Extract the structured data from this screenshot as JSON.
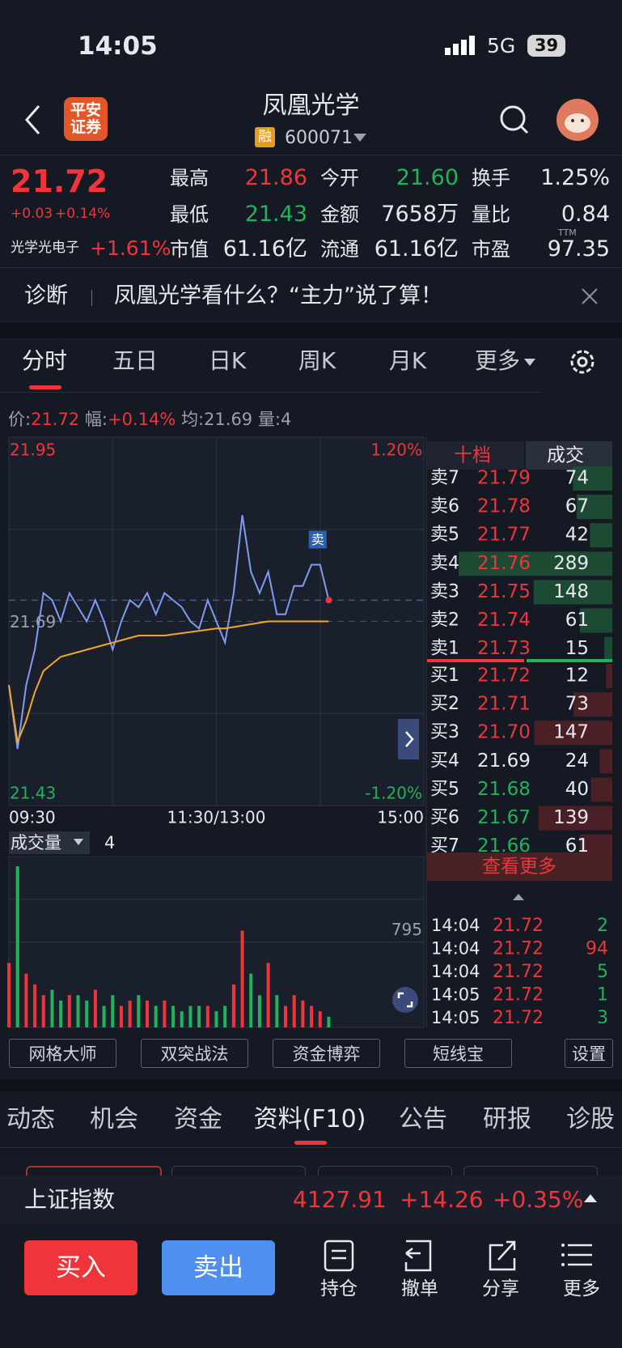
{
  "status_bar": {
    "time": "14:05",
    "network": "5G",
    "battery": "39"
  },
  "header": {
    "logo": [
      "平安",
      "证券"
    ],
    "title": "凤凰光学",
    "tag": "融",
    "code": "600071"
  },
  "quote": {
    "price": "21.72",
    "change": "+0.03",
    "change_pct": "+0.14%",
    "sector": "光学光电子",
    "sector_pct": "+1.61%",
    "ttm": "TTM",
    "stats": [
      {
        "label": "最高",
        "value": "21.86"
      },
      {
        "label": "今开",
        "value": "21.60"
      },
      {
        "label": "换手",
        "value": "1.25%"
      },
      {
        "label": "最低",
        "value": "21.43"
      },
      {
        "label": "金额",
        "value": "7658万"
      },
      {
        "label": "量比",
        "value": "0.84"
      },
      {
        "label": "市值",
        "value": "61.16亿"
      },
      {
        "label": "流通",
        "value": "61.16亿"
      },
      {
        "label": "市盈",
        "value": "97.35"
      }
    ]
  },
  "banner": {
    "label": "诊断",
    "text": "凤凰光学看什么？“主力”说了算！"
  },
  "tabs": [
    "分时",
    "五日",
    "日K",
    "周K",
    "月K",
    "更多"
  ],
  "info_line": {
    "price_label": "价:",
    "price": "21.72",
    "amp_label": "幅:",
    "amp": "+0.14%",
    "avg_label": "均:",
    "avg": "21.69",
    "vol_label": "量:",
    "vol": "4"
  },
  "chart_data": [
    {
      "type": "line",
      "annotation": "卖",
      "xticks": [
        "09:30",
        "11:30/13:00",
        "15:00"
      ],
      "ylim": [
        21.43,
        21.95
      ],
      "yticks": [
        21.95,
        21.69,
        21.43
      ],
      "y2lim": [
        -1.2,
        1.2
      ],
      "y2ticks": [
        {
          "value": 1.2,
          "label": "1.20%"
        },
        {
          "value": -1.2,
          "label": "-1.20%"
        }
      ],
      "series": [
        {
          "name": "价",
          "color": "#7f9cf5",
          "x": [
            "09:30",
            "09:35",
            "09:40",
            "09:45",
            "09:50",
            "09:55",
            "10:00",
            "10:05",
            "10:10",
            "10:15",
            "10:20",
            "10:25",
            "10:30",
            "10:35",
            "10:40",
            "10:45",
            "10:50",
            "10:55",
            "11:00",
            "11:05",
            "11:10",
            "11:15",
            "11:20",
            "11:25",
            "11:30",
            "13:05",
            "13:10",
            "13:15",
            "13:20",
            "13:25",
            "13:30",
            "13:35",
            "13:40",
            "13:45",
            "13:50",
            "13:55",
            "14:00",
            "14:05"
          ],
          "values": [
            21.6,
            21.51,
            21.6,
            21.65,
            21.73,
            21.72,
            21.69,
            21.73,
            21.71,
            21.69,
            21.72,
            21.69,
            21.65,
            21.69,
            21.72,
            21.71,
            21.73,
            21.7,
            21.73,
            21.72,
            21.71,
            21.69,
            21.68,
            21.72,
            21.69,
            21.66,
            21.73,
            21.84,
            21.76,
            21.73,
            21.76,
            21.7,
            21.7,
            21.74,
            21.74,
            21.77,
            21.77,
            21.72
          ]
        },
        {
          "name": "均",
          "color": "#f5a623",
          "x": [
            "09:30",
            "09:35",
            "09:40",
            "09:45",
            "09:50",
            "10:00",
            "10:15",
            "10:30",
            "10:45",
            "11:00",
            "11:30",
            "13:05",
            "13:30",
            "14:05"
          ],
          "values": [
            21.6,
            21.52,
            21.55,
            21.59,
            21.62,
            21.64,
            21.65,
            21.66,
            21.67,
            21.67,
            21.68,
            21.68,
            21.69,
            21.69
          ]
        }
      ]
    },
    {
      "type": "bar",
      "title": "成交量",
      "current": "4",
      "ylim": [
        0,
        1590
      ],
      "yticks": [
        795
      ],
      "x": [
        "09:30",
        "09:35",
        "09:40",
        "09:45",
        "09:50",
        "09:55",
        "10:00",
        "10:05",
        "10:10",
        "10:15",
        "10:20",
        "10:25",
        "10:30",
        "10:35",
        "10:40",
        "10:45",
        "10:50",
        "10:55",
        "11:00",
        "11:05",
        "11:10",
        "11:15",
        "11:20",
        "11:25",
        "11:30",
        "13:05",
        "13:10",
        "13:15",
        "13:20",
        "13:25",
        "13:30",
        "13:35",
        "13:40",
        "13:45",
        "13:50",
        "13:55",
        "14:00",
        "14:05"
      ],
      "values": [
        600,
        1500,
        500,
        400,
        300,
        350,
        250,
        300,
        300,
        250,
        350,
        200,
        300,
        200,
        250,
        300,
        250,
        200,
        250,
        200,
        150,
        200,
        200,
        200,
        150,
        200,
        400,
        900,
        500,
        300,
        600,
        300,
        200,
        300,
        250,
        200,
        150,
        100
      ]
    }
  ],
  "order_book": {
    "tabs": [
      "十档",
      "成交"
    ],
    "asks": [
      {
        "label": "卖7",
        "price": "21.79",
        "volume": 74
      },
      {
        "label": "卖6",
        "price": "21.78",
        "volume": 67
      },
      {
        "label": "卖5",
        "price": "21.77",
        "volume": 42
      },
      {
        "label": "卖4",
        "price": "21.76",
        "volume": 289
      },
      {
        "label": "卖3",
        "price": "21.75",
        "volume": 148
      },
      {
        "label": "卖2",
        "price": "21.74",
        "volume": 61
      },
      {
        "label": "卖1",
        "price": "21.73",
        "volume": 15
      }
    ],
    "bids": [
      {
        "label": "买1",
        "price": "21.72",
        "volume": 12
      },
      {
        "label": "买2",
        "price": "21.71",
        "volume": 73
      },
      {
        "label": "买3",
        "price": "21.70",
        "volume": 147
      },
      {
        "label": "买4",
        "price": "21.69",
        "volume": 24
      },
      {
        "label": "买5",
        "price": "21.68",
        "volume": 40
      },
      {
        "label": "买6",
        "price": "21.67",
        "volume": 139
      },
      {
        "label": "买7",
        "price": "21.66",
        "volume": 61
      }
    ],
    "more": "查看更多",
    "trades": [
      {
        "time": "14:04",
        "price": "21.72",
        "volume": 2,
        "color": "#21b35a"
      },
      {
        "time": "14:04",
        "price": "21.72",
        "volume": 94,
        "color": "#f0353a"
      },
      {
        "time": "14:04",
        "price": "21.72",
        "volume": 5,
        "color": "#21b35a"
      },
      {
        "time": "14:05",
        "price": "21.72",
        "volume": 1,
        "color": "#21b35a"
      },
      {
        "time": "14:05",
        "price": "21.72",
        "volume": 3,
        "color": "#21b35a"
      }
    ]
  },
  "tools": [
    "网格大师",
    "双突战法",
    "资金博弈",
    "短线宝",
    "设置"
  ],
  "bottom_tabs": [
    "动态",
    "机会",
    "资金",
    "资料(F10)",
    "公告",
    "研报",
    "诊股"
  ],
  "index_bar": {
    "name": "上证指数",
    "value": "4127.91",
    "change": "+14.26",
    "pct": "+0.35%"
  },
  "actions": {
    "buy": "买入",
    "sell": "卖出",
    "items": [
      "持仓",
      "撤单",
      "分享",
      "更多"
    ]
  }
}
